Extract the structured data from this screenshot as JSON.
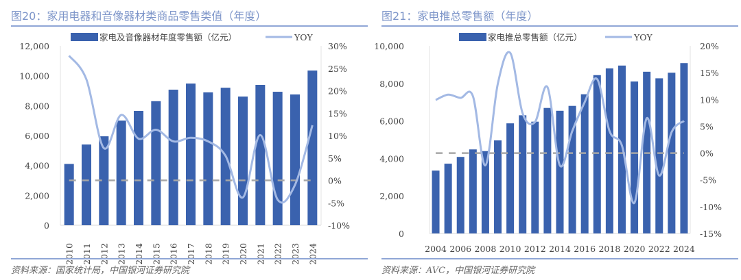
{
  "colors": {
    "bar": "#3a62ae",
    "yoy": "#a3b9e4",
    "zero": "#a6a6a6"
  },
  "chart_data": [
    {
      "type": "bar+line",
      "title": "图20：家用电器和音像器材类商品零售类值（年度）",
      "source": "资料来源：国家统计局，中国银河证券研究院",
      "legend": {
        "bar": "家电及音像器材年度零售额（亿元）",
        "line": "YOY",
        "placement": "top"
      },
      "categories": [
        "2010",
        "2011",
        "2012",
        "2013",
        "2014",
        "2015",
        "2016",
        "2017",
        "2018",
        "2019",
        "2020",
        "2021",
        "2022",
        "2023",
        "2024"
      ],
      "bar_values": [
        4100,
        5400,
        5950,
        7000,
        7650,
        8300,
        9070,
        9480,
        8890,
        9200,
        8610,
        9390,
        8930,
        8750,
        10350
      ],
      "yoy_values": [
        27.8,
        22.5,
        7.2,
        14.6,
        9.3,
        11.3,
        8.7,
        9.5,
        8.7,
        5.5,
        -3.8,
        10.1,
        -4.3,
        -1.0,
        12.3
      ],
      "ylim": [
        0,
        12000
      ],
      "yticks": [
        "0",
        "2,000",
        "4,000",
        "6,000",
        "8,000",
        "10,000",
        "12,000"
      ],
      "y2lim": [
        -10,
        30
      ],
      "y2ticks": [
        "-10%",
        "-5%",
        "0%",
        "5%",
        "10%",
        "15%",
        "20%",
        "25%",
        "30%"
      ],
      "xlabel_step": 1,
      "xlabel_rotated": true
    },
    {
      "type": "bar+line",
      "title": "图21：家电推总零售额（年度）",
      "source": "资料来源：AVC，中国银河证券研究院",
      "legend": {
        "bar": "家电推总零售额（亿元）",
        "line": "YOY",
        "placement": "top"
      },
      "categories": [
        "2004",
        "2005",
        "2006",
        "2007",
        "2008",
        "2009",
        "2010",
        "2011",
        "2012",
        "2013",
        "2014",
        "2015",
        "2016",
        "2017",
        "2018",
        "2019",
        "2020",
        "2021",
        "2022",
        "2023",
        "2024"
      ],
      "bar_values": [
        3350,
        3720,
        4080,
        4480,
        4390,
        4960,
        5870,
        6300,
        5960,
        6690,
        6540,
        6800,
        7420,
        8440,
        8800,
        8950,
        8100,
        8620,
        8270,
        8570,
        9080
      ],
      "yoy_values": [
        9.9,
        10.9,
        10.3,
        10.6,
        -2.3,
        12.9,
        18.7,
        7.4,
        5.8,
        12.3,
        -2.3,
        4.1,
        9.5,
        13.8,
        4.1,
        1.4,
        -9.3,
        6.5,
        -4.2,
        3.9,
        6.0
      ],
      "ylim": [
        0,
        10000
      ],
      "yticks": [
        "0",
        "2,000",
        "4,000",
        "6,000",
        "8,000",
        "10,000"
      ],
      "y2lim": [
        -15,
        20
      ],
      "y2ticks": [
        "-15%",
        "-10%",
        "-5%",
        "0%",
        "5%",
        "10%",
        "15%",
        "20%"
      ],
      "xlabel_step": 2,
      "xlabel_rotated": false
    }
  ]
}
